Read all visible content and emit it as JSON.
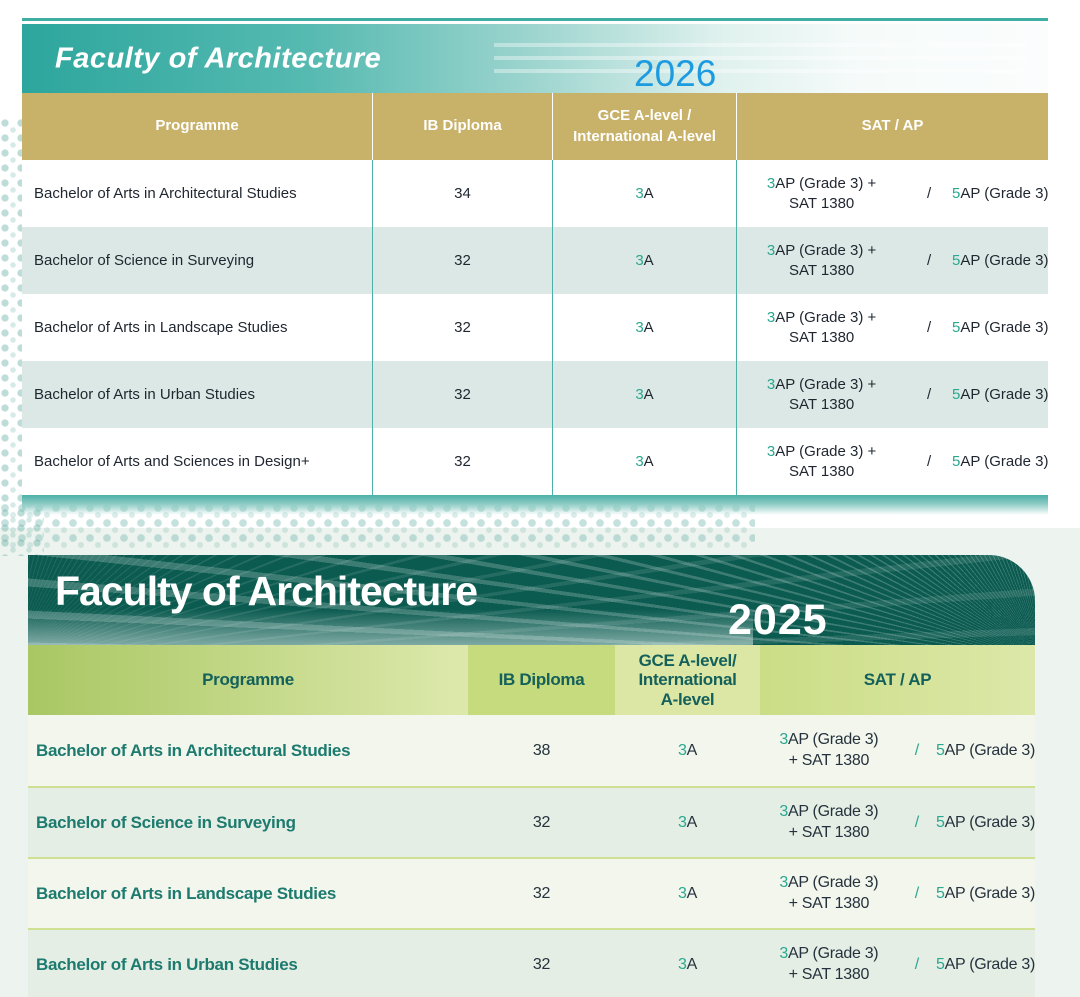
{
  "colors": {
    "top_banner_teal": "#2DA69D",
    "top_header_khaki": "#C8B169",
    "year_2026_blue": "#1D9BE0",
    "accent_green": "#2AA78F",
    "row_alt_teal": "#DCE8E5",
    "bottom_banner_teal": "#0B5B50",
    "bottom_header_green": "#C6DA7E",
    "bottom_text_teal": "#1D7A6E"
  },
  "tables": [
    {
      "title": "Faculty of Architecture",
      "year": "2026",
      "headers": {
        "programme": "Programme",
        "ib": "IB Diploma",
        "gce": "GCE A-level /\nInternational A-level",
        "sat": "SAT / AP"
      },
      "rows": [
        {
          "programme": "Bachelor of Arts in Architectural Studies",
          "ib": "34",
          "gce_num": "3",
          "gce_rest": "A",
          "sat1_num": "3",
          "sat1_rest": "AP (Grade 3) +",
          "sat1_line2": "SAT 1380",
          "slash": "/",
          "sat2_num": "5",
          "sat2_rest": "AP (Grade 3)"
        },
        {
          "programme": "Bachelor of Science in Surveying",
          "ib": "32",
          "gce_num": "3",
          "gce_rest": "A",
          "sat1_num": "3",
          "sat1_rest": "AP (Grade 3) +",
          "sat1_line2": "SAT 1380",
          "slash": "/",
          "sat2_num": "5",
          "sat2_rest": "AP (Grade 3)"
        },
        {
          "programme": "Bachelor of Arts in Landscape Studies",
          "ib": "32",
          "gce_num": "3",
          "gce_rest": "A",
          "sat1_num": "3",
          "sat1_rest": "AP (Grade 3) +",
          "sat1_line2": "SAT 1380",
          "slash": "/",
          "sat2_num": "5",
          "sat2_rest": "AP (Grade 3)"
        },
        {
          "programme": "Bachelor of Arts in Urban Studies",
          "ib": "32",
          "gce_num": "3",
          "gce_rest": "A",
          "sat1_num": "3",
          "sat1_rest": "AP (Grade 3) +",
          "sat1_line2": "SAT 1380",
          "slash": "/",
          "sat2_num": "5",
          "sat2_rest": "AP (Grade 3)"
        },
        {
          "programme": "Bachelor of Arts and Sciences in Design+",
          "ib": "32",
          "gce_num": "3",
          "gce_rest": "A",
          "sat1_num": "3",
          "sat1_rest": "AP (Grade 3) +",
          "sat1_line2": "SAT 1380",
          "slash": "/",
          "sat2_num": "5",
          "sat2_rest": "AP (Grade 3)"
        }
      ]
    },
    {
      "title": "Faculty of Architecture",
      "year": "2025",
      "headers": {
        "programme": "Programme",
        "ib": "IB Diploma",
        "gce": "GCE A-level/\nInternational\nA-level",
        "sat": "SAT / AP"
      },
      "rows": [
        {
          "programme": "Bachelor of Arts in Architectural Studies",
          "ib": "38",
          "gce_num": "3",
          "gce_rest": "A",
          "sat1_num": "3",
          "sat1_rest": "AP (Grade 3)",
          "sat1_line2": "+ SAT 1380",
          "slash": "/",
          "sat2_num": "5",
          "sat2_rest": "AP (Grade 3)"
        },
        {
          "programme": "Bachelor of Science in Surveying",
          "ib": "32",
          "gce_num": "3",
          "gce_rest": "A",
          "sat1_num": "3",
          "sat1_rest": "AP (Grade 3)",
          "sat1_line2": "+ SAT 1380",
          "slash": "/",
          "sat2_num": "5",
          "sat2_rest": "AP (Grade 3)"
        },
        {
          "programme": "Bachelor of Arts in Landscape Studies",
          "ib": "32",
          "gce_num": "3",
          "gce_rest": "A",
          "sat1_num": "3",
          "sat1_rest": "AP (Grade 3)",
          "sat1_line2": "+ SAT 1380",
          "slash": "/",
          "sat2_num": "5",
          "sat2_rest": "AP (Grade 3)"
        },
        {
          "programme": "Bachelor of Arts in Urban Studies",
          "ib": "32",
          "gce_num": "3",
          "gce_rest": "A",
          "sat1_num": "3",
          "sat1_rest": "AP (Grade 3)",
          "sat1_line2": "+ SAT 1380",
          "slash": "/",
          "sat2_num": "5",
          "sat2_rest": "AP (Grade 3)"
        }
      ]
    }
  ]
}
